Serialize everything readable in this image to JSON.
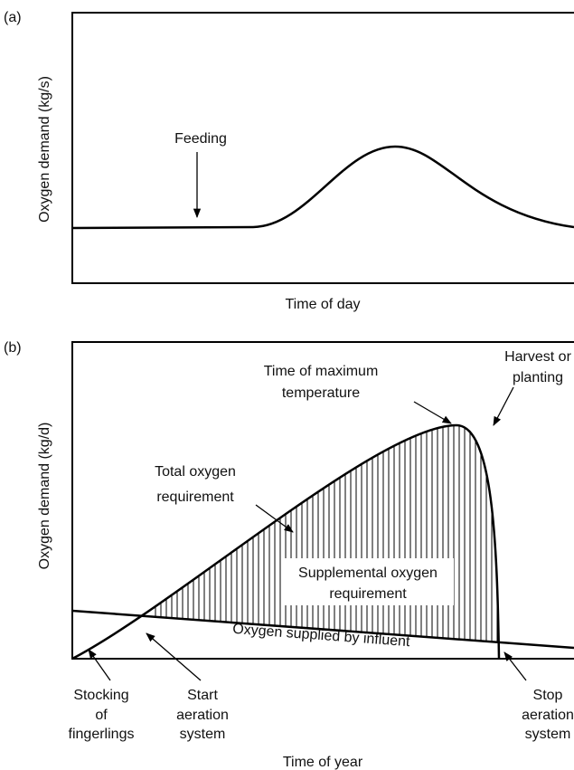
{
  "panel_a": {
    "label": "(a)",
    "y_label": "Oxygen demand (kg/s)",
    "x_label": "Time of day",
    "feeding": "Feeding"
  },
  "panel_b": {
    "label": "(b)",
    "y_label": "Oxygen demand (kg/d)",
    "x_label": "Time of year",
    "max_temperature": [
      "Time of maximum",
      "temperature"
    ],
    "harvest": [
      "Harvest or",
      "planting"
    ],
    "total_requirement": [
      "Total oxygen",
      "requirement"
    ],
    "supplemental": [
      "Supplemental oxygen",
      "requirement"
    ],
    "influent": "Oxygen supplied by influent",
    "stocking": [
      "Stocking",
      "of",
      "fingerlings"
    ],
    "start_aeration": [
      "Start",
      "aeration",
      "system"
    ],
    "stop_aeration": [
      "Stop",
      "aeration",
      "system"
    ]
  }
}
